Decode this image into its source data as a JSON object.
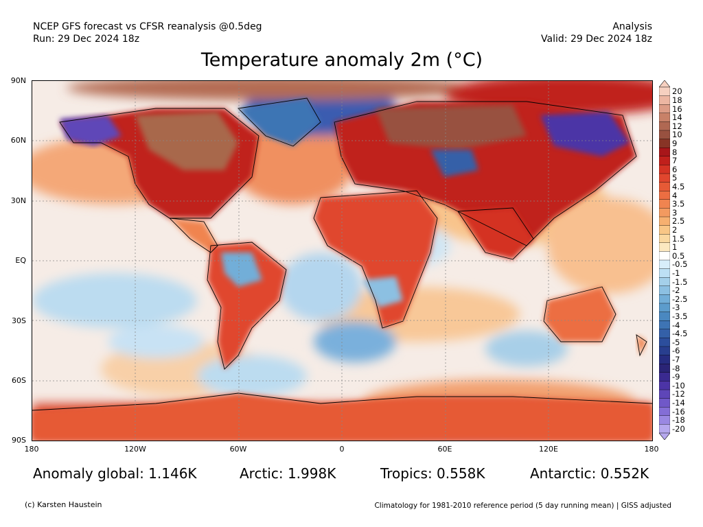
{
  "header": {
    "left_line1": "NCEP GFS forecast vs CFSR reanalysis @0.5deg",
    "left_line2": "Run: 29 Dec 2024 18z",
    "right_line1": "Analysis",
    "right_line2": "Valid: 29 Dec 2024 18z"
  },
  "title": "Temperature anomaly 2m (°C)",
  "axes": {
    "lat_labels": [
      "90N",
      "60N",
      "30N",
      "EQ",
      "30S",
      "60S",
      "90S"
    ],
    "lon_labels": [
      "180",
      "120W",
      "60W",
      "0",
      "60E",
      "120E",
      "180"
    ]
  },
  "colorbar": {
    "labels": [
      "20",
      "18",
      "16",
      "14",
      "12",
      "10",
      "9",
      "8",
      "7",
      "6",
      "5",
      "4.5",
      "4",
      "3.5",
      "3",
      "2.5",
      "2",
      "1.5",
      "1",
      "0.5",
      "-0.5",
      "-1",
      "-1.5",
      "-2",
      "-2.5",
      "-3",
      "-3.5",
      "-4",
      "-4.5",
      "-5",
      "-6",
      "-7",
      "-8",
      "-9",
      "-10",
      "-12",
      "-14",
      "-16",
      "-18",
      "-20"
    ],
    "colors": [
      "#f6d0c0",
      "#ecb6a2",
      "#dc9c86",
      "#c88168",
      "#b06852",
      "#985140",
      "#883426",
      "#a8161a",
      "#c0201c",
      "#d43324",
      "#e0462e",
      "#e65a36",
      "#ec6e42",
      "#f08450",
      "#f39a60",
      "#f6b070",
      "#f8c686",
      "#fad8a0",
      "#fce8c0",
      "#ffffff",
      "#d8eefa",
      "#bde0f4",
      "#a4d0ea",
      "#8cc0e2",
      "#72aed8",
      "#5c9ccc",
      "#4a88c0",
      "#3e74b4",
      "#3460a8",
      "#2c4e9c",
      "#283e8e",
      "#262c80",
      "#2a2476",
      "#3a2a90",
      "#4c34a6",
      "#5e46b8",
      "#7058c8",
      "#846ed6",
      "#9a88e2",
      "#b6a8ee"
    ]
  },
  "stats": {
    "global": "Anomaly global: 1.146K",
    "arctic": "Arctic: 1.998K",
    "tropics": "Tropics: 0.558K",
    "antarctic": "Antarctic: 0.552K"
  },
  "footer": {
    "credit": "(c) Karsten Haustein",
    "note": "Climatology for 1981-2010 reference period (5 day running mean) | GISS adjusted"
  }
}
